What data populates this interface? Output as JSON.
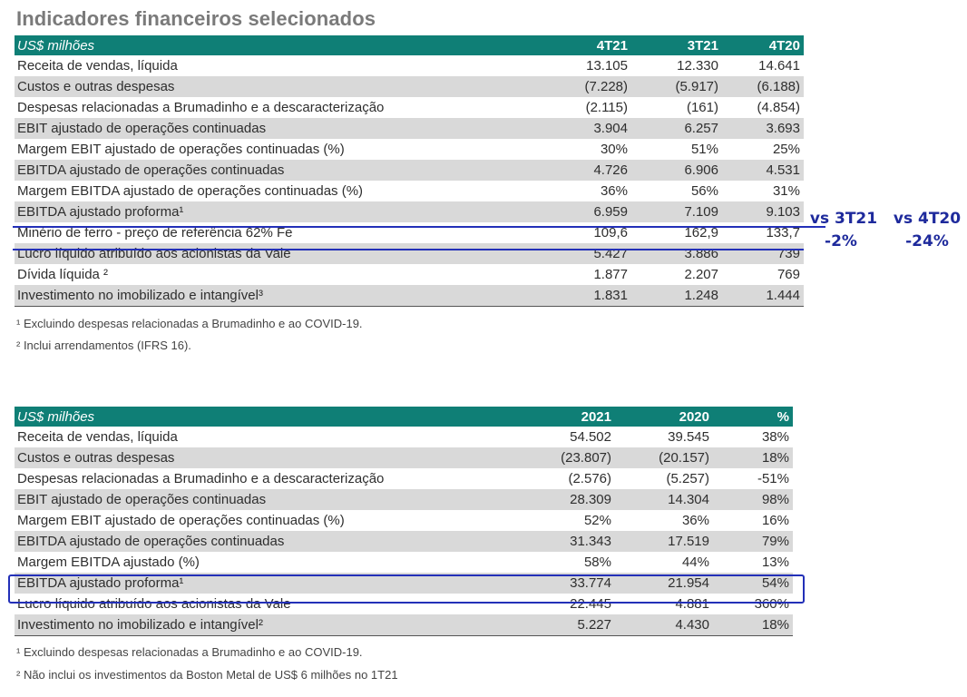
{
  "title": "Indicadores financeiros selecionados",
  "table1": {
    "headers": [
      "US$ milhões",
      "4T21",
      "3T21",
      "4T20"
    ],
    "rows": [
      [
        "Receita de vendas, líquida",
        "13.105",
        "12.330",
        "14.641"
      ],
      [
        "Custos e outras despesas",
        "(7.228)",
        "(5.917)",
        "(6.188)"
      ],
      [
        "Despesas relacionadas a Brumadinho e a descaracterização",
        "(2.115)",
        "(161)",
        "(4.854)"
      ],
      [
        "EBIT ajustado de operações continuadas",
        "3.904",
        "6.257",
        "3.693"
      ],
      [
        "Margem EBIT ajustado de operações continuadas (%)",
        "30%",
        "51%",
        "25%"
      ],
      [
        "EBITDA ajustado de operações continuadas",
        "4.726",
        "6.906",
        "4.531"
      ],
      [
        "Margem EBITDA ajustado de operações continuadas (%)",
        "36%",
        "56%",
        "31%"
      ],
      [
        "EBITDA ajustado proforma¹",
        "6.959",
        "7.109",
        "9.103"
      ],
      [
        "Minério de ferro -  preço de referência 62% Fe",
        "109,6",
        "162,9",
        "133,7"
      ],
      [
        "Lucro líquido atribuído aos acionistas da Vale",
        "5.427",
        "3.886",
        "739"
      ],
      [
        "Dívida líquida ²",
        "1.877",
        "2.207",
        "769"
      ],
      [
        "Investimento no imobilizado e intangível³",
        "1.831",
        "1.248",
        "1.444"
      ]
    ],
    "footnotes": [
      "¹ Excluindo despesas relacionadas a Brumadinho e ao COVID-19.",
      "² Inclui arrendamentos (IFRS 16)."
    ]
  },
  "annotations": {
    "vs_3t21_label": "vs 3T21",
    "vs_3t21_value": "-2%",
    "vs_4t20_label": "vs 4T20",
    "vs_4t20_value": "-24%",
    "ink_color": "#2330b8"
  },
  "table2": {
    "headers": [
      "US$ milhões",
      "2021",
      "2020",
      "%"
    ],
    "rows": [
      [
        "Receita de vendas, líquida",
        "54.502",
        "39.545",
        "38%"
      ],
      [
        "Custos e outras despesas",
        "(23.807)",
        "(20.157)",
        "18%"
      ],
      [
        "Despesas relacionadas a Brumadinho e a descaracterização",
        "(2.576)",
        "(5.257)",
        "-51%"
      ],
      [
        "EBIT ajustado de operações continuadas",
        "28.309",
        "14.304",
        "98%"
      ],
      [
        "Margem EBIT ajustado de operações continuadas (%)",
        "52%",
        "36%",
        "16%"
      ],
      [
        "EBITDA ajustado de operações continuadas",
        "31.343",
        "17.519",
        "79%"
      ],
      [
        "Margem EBITDA ajustado (%)",
        "58%",
        "44%",
        "13%"
      ],
      [
        "EBITDA ajustado proforma¹",
        "33.774",
        "21.954",
        "54%"
      ],
      [
        "Lucro líquido atribuído aos acionistas da Vale",
        "22.445",
        "4.881",
        "360%"
      ],
      [
        "Investimento no imobilizado e intangível²",
        "5.227",
        "4.430",
        "18%"
      ]
    ],
    "footnotes": [
      "¹ Excluindo despesas relacionadas a Brumadinho e ao COVID-19.",
      "² Não inclui os investimentos da Boston Metal de US$ 6 milhões no 1T21"
    ]
  },
  "colors": {
    "header_bg": "#0f7f76",
    "row_shade": "#d9d9d9",
    "title": "#7a7a7a"
  }
}
